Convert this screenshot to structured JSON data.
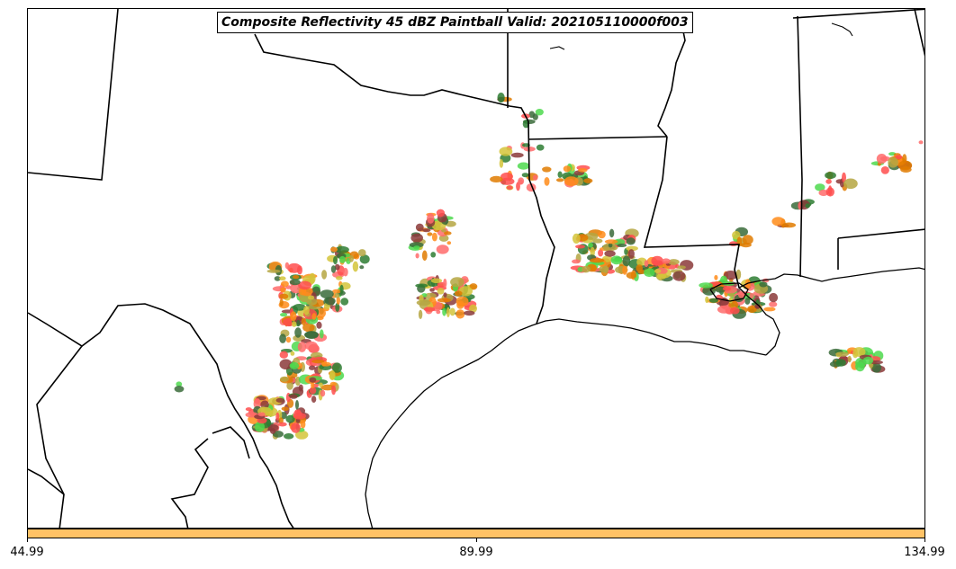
{
  "map": {
    "title": "Composite Reflectivity 45 dBZ Paintball Valid: 202105110000f003",
    "colorbar": {
      "color": "#ffc266",
      "ticks": [
        "44.99",
        "89.99",
        "134.99"
      ]
    },
    "paint_colors": [
      "#ff4d4d",
      "#ff8c1a",
      "#4dd94d",
      "#2e7d32",
      "#8b3a3a",
      "#b5a642",
      "#d4c43a",
      "#ff6b6b",
      "#e07b00",
      "#3a6b3a"
    ]
  }
}
